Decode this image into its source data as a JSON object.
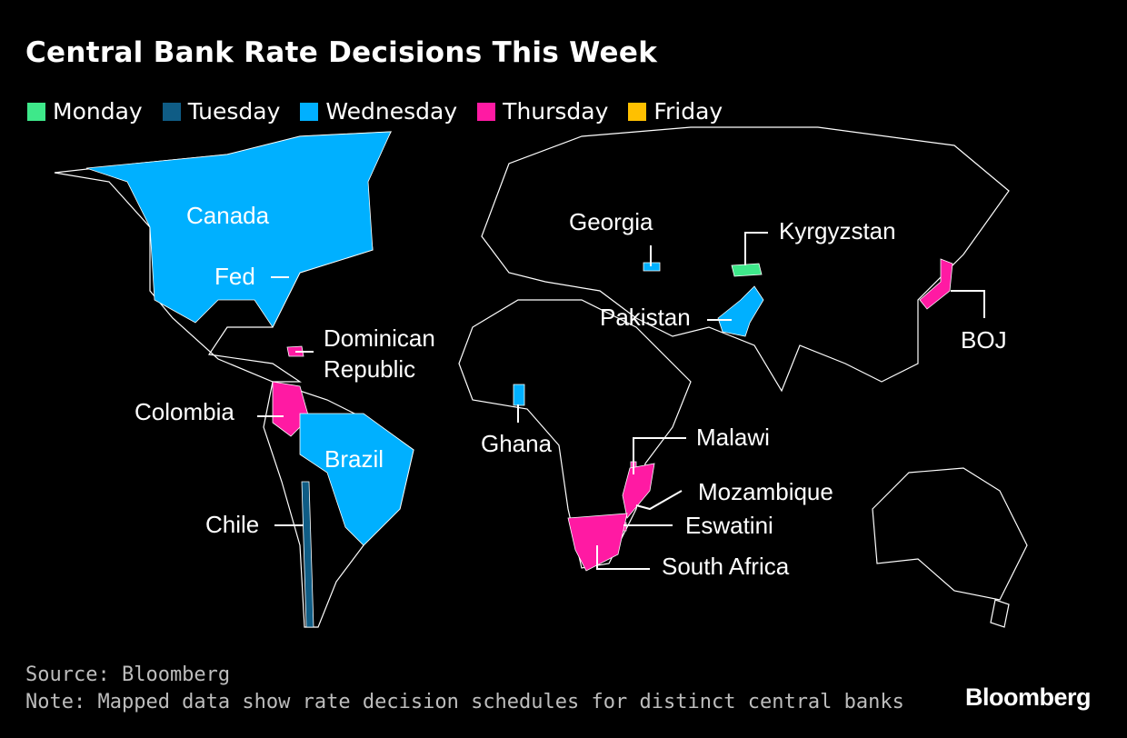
{
  "title": "Central Bank Rate Decisions This Week",
  "legend": [
    {
      "name": "Monday",
      "color": "#3ee88a"
    },
    {
      "name": "Tuesday",
      "color": "#0f5c85"
    },
    {
      "name": "Wednesday",
      "color": "#00b0ff"
    },
    {
      "name": "Thursday",
      "color": "#ff1aa3"
    },
    {
      "name": "Friday",
      "color": "#ffc000"
    }
  ],
  "map_labels": [
    {
      "text": "Canada",
      "color": "#00b0ff"
    },
    {
      "text": "Fed",
      "color": "#00b0ff"
    },
    {
      "text": "Dominican Republic",
      "color": "#ff1aa3"
    },
    {
      "text": "Colombia",
      "color": "#ff1aa3"
    },
    {
      "text": "Brazil",
      "color": "#00b0ff"
    },
    {
      "text": "Chile",
      "color": "#0f5c85"
    },
    {
      "text": "Georgia",
      "color": "#00b0ff"
    },
    {
      "text": "Kyrgyzstan",
      "color": "#3ee88a"
    },
    {
      "text": "Pakistan",
      "color": "#00b0ff"
    },
    {
      "text": "BOJ",
      "color": "#ff1aa3"
    },
    {
      "text": "Ghana",
      "color": "#00b0ff"
    },
    {
      "text": "Malawi",
      "color": "#ff1aa3"
    },
    {
      "text": "Mozambique",
      "color": "#ff1aa3"
    },
    {
      "text": "Eswatini",
      "color": "#ff1aa3"
    },
    {
      "text": "South Africa",
      "color": "#ff1aa3"
    }
  ],
  "source": "Source: Bloomberg",
  "note": "Note: Mapped data show rate decision schedules for distinct central banks",
  "logo": "Bloomberg"
}
